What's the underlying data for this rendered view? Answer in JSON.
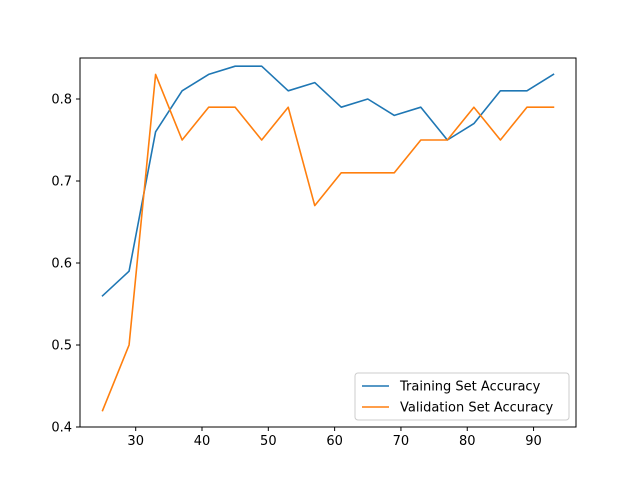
{
  "chart_data": {
    "type": "line",
    "title": "",
    "xlabel": "",
    "ylabel": "",
    "xlim": [
      21.6,
      96.4
    ],
    "ylim": [
      0.4,
      0.85
    ],
    "xticks": [
      30,
      40,
      50,
      60,
      70,
      80,
      90
    ],
    "yticks": [
      0.4,
      0.5,
      0.6,
      0.7,
      0.8
    ],
    "xtick_labels": [
      "30",
      "40",
      "50",
      "60",
      "70",
      "80",
      "90"
    ],
    "ytick_labels": [
      "0.4",
      "0.5",
      "0.6",
      "0.7",
      "0.8"
    ],
    "grid": false,
    "legend_position": "lower-right",
    "x": [
      25,
      29,
      33,
      37,
      41,
      45,
      49,
      53,
      57,
      61,
      65,
      69,
      73,
      77,
      81,
      85,
      89,
      93
    ],
    "series": [
      {
        "name": "Training Set Accuracy",
        "color": "#1f77b4",
        "values": [
          0.56,
          0.59,
          0.76,
          0.81,
          0.83,
          0.84,
          0.84,
          0.81,
          0.82,
          0.79,
          0.8,
          0.78,
          0.79,
          0.75,
          0.77,
          0.81,
          0.81,
          0.83
        ]
      },
      {
        "name": "Validation Set Accuracy",
        "color": "#ff7f0e",
        "values": [
          0.42,
          0.5,
          0.83,
          0.75,
          0.79,
          0.79,
          0.75,
          0.79,
          0.67,
          0.71,
          0.71,
          0.71,
          0.75,
          0.75,
          0.79,
          0.75,
          0.79,
          0.79
        ]
      }
    ]
  }
}
